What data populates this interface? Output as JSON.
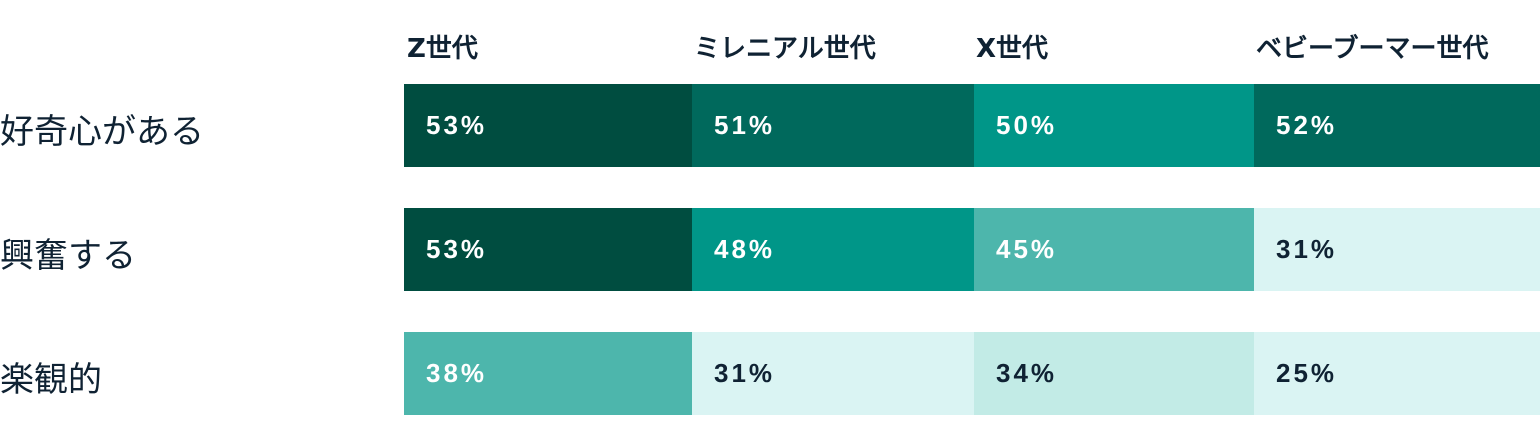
{
  "chart_data": {
    "type": "heatmap",
    "columns": [
      "Z世代",
      "ミレニアル世代",
      "X世代",
      "ベビーブーマー世代"
    ],
    "rows": [
      "好奇心がある",
      "興奮する",
      "楽観的"
    ],
    "values": [
      [
        53,
        51,
        50,
        52
      ],
      [
        53,
        48,
        45,
        31
      ],
      [
        38,
        31,
        34,
        25
      ]
    ],
    "labels": [
      [
        "53%",
        "51%",
        "50%",
        "52%"
      ],
      [
        "53%",
        "48%",
        "45%",
        "31%"
      ],
      [
        "38%",
        "31%",
        "34%",
        "25%"
      ]
    ],
    "cell_colors": [
      [
        "#004d40",
        "#00695c",
        "#009688",
        "#00695c"
      ],
      [
        "#004d40",
        "#009688",
        "#4db6ac",
        "#daf4f3"
      ],
      [
        "#4db6ac",
        "#daf4f3",
        "#c2ebe6",
        "#daf4f3"
      ]
    ],
    "text_colors": {
      "light": "#ffffff",
      "dark": "#0f2233"
    }
  }
}
